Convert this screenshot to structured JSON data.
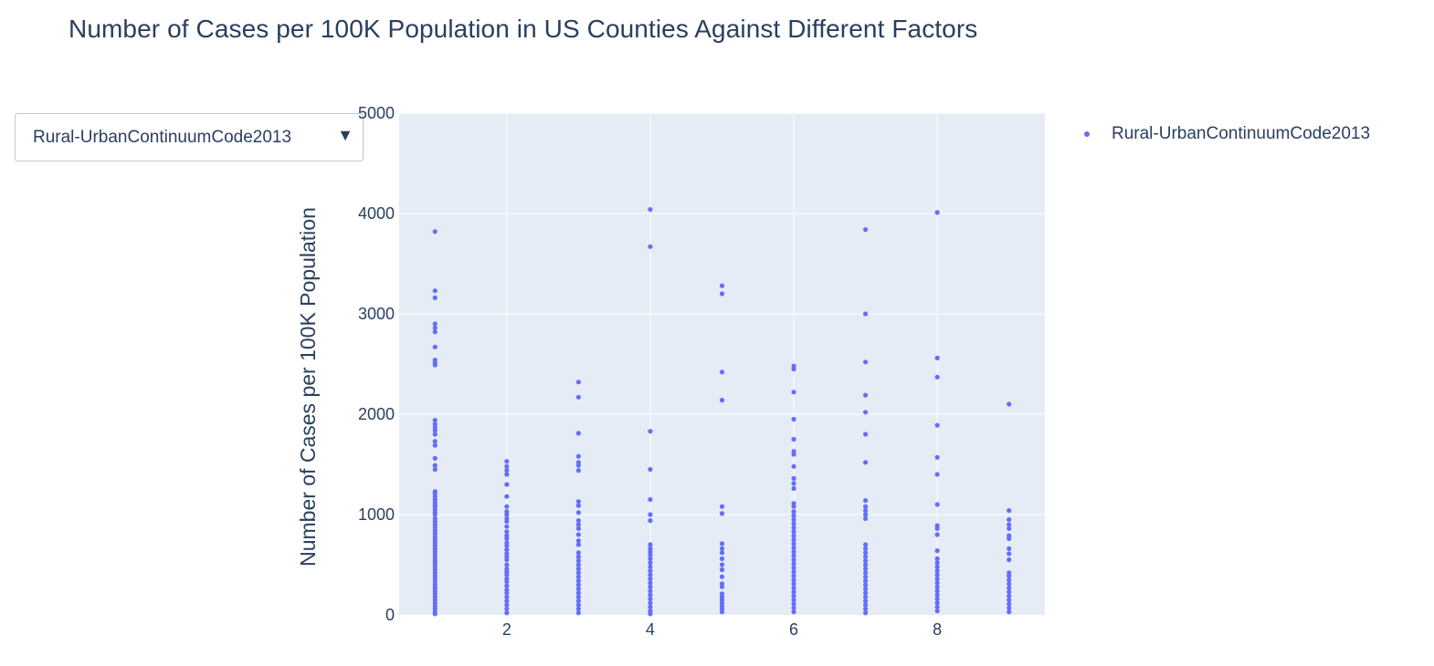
{
  "colors": {
    "plot_bg": "#e5ecf6",
    "grid": "#ffffff",
    "marker": "#636efa",
    "text": "#2a3f5f"
  },
  "dropdown": {
    "selected": "Rural-UrbanContinuumCode2013",
    "arrow_icon": "triangle-down-icon"
  },
  "chart_data": {
    "type": "scatter",
    "title": "Number of Cases per 100K Population in US Counties Against Different Factors",
    "xlabel": "",
    "ylabel": "Number of Cases per 100K Population",
    "xlim": [
      0.5,
      9.5
    ],
    "ylim": [
      0,
      5000
    ],
    "x_ticks": [
      2,
      4,
      6,
      8
    ],
    "y_ticks": [
      0,
      1000,
      2000,
      3000,
      4000,
      5000
    ],
    "grid": true,
    "legend_position": "top-right",
    "series": [
      {
        "name": "Rural-UrbanContinuumCode2013",
        "points": [
          [
            1,
            3820
          ],
          [
            1,
            3230
          ],
          [
            1,
            3160
          ],
          [
            1,
            2900
          ],
          [
            1,
            2860
          ],
          [
            1,
            2820
          ],
          [
            1,
            2670
          ],
          [
            1,
            2540
          ],
          [
            1,
            2510
          ],
          [
            1,
            2490
          ],
          [
            1,
            1940
          ],
          [
            1,
            1900
          ],
          [
            1,
            1870
          ],
          [
            1,
            1840
          ],
          [
            1,
            1800
          ],
          [
            1,
            1730
          ],
          [
            1,
            1690
          ],
          [
            1,
            1560
          ],
          [
            1,
            1490
          ],
          [
            1,
            1450
          ],
          [
            1,
            1230
          ],
          [
            1,
            1210
          ],
          [
            1,
            1180
          ],
          [
            1,
            1150
          ],
          [
            1,
            1120
          ],
          [
            1,
            1100
          ],
          [
            1,
            1080
          ],
          [
            1,
            1050
          ],
          [
            1,
            1020
          ],
          [
            1,
            1000
          ],
          [
            1,
            960
          ],
          [
            1,
            930
          ],
          [
            1,
            900
          ],
          [
            1,
            870
          ],
          [
            1,
            840
          ],
          [
            1,
            810
          ],
          [
            1,
            780
          ],
          [
            1,
            750
          ],
          [
            1,
            720
          ],
          [
            1,
            690
          ],
          [
            1,
            660
          ],
          [
            1,
            630
          ],
          [
            1,
            600
          ],
          [
            1,
            570
          ],
          [
            1,
            540
          ],
          [
            1,
            510
          ],
          [
            1,
            480
          ],
          [
            1,
            450
          ],
          [
            1,
            420
          ],
          [
            1,
            390
          ],
          [
            1,
            360
          ],
          [
            1,
            330
          ],
          [
            1,
            300
          ],
          [
            1,
            270
          ],
          [
            1,
            240
          ],
          [
            1,
            210
          ],
          [
            1,
            180
          ],
          [
            1,
            150
          ],
          [
            1,
            120
          ],
          [
            1,
            90
          ],
          [
            1,
            60
          ],
          [
            1,
            30
          ],
          [
            1,
            10
          ],
          [
            2,
            1530
          ],
          [
            2,
            1480
          ],
          [
            2,
            1440
          ],
          [
            2,
            1400
          ],
          [
            2,
            1300
          ],
          [
            2,
            1180
          ],
          [
            2,
            1080
          ],
          [
            2,
            1030
          ],
          [
            2,
            1000
          ],
          [
            2,
            960
          ],
          [
            2,
            930
          ],
          [
            2,
            880
          ],
          [
            2,
            830
          ],
          [
            2,
            790
          ],
          [
            2,
            760
          ],
          [
            2,
            720
          ],
          [
            2,
            690
          ],
          [
            2,
            650
          ],
          [
            2,
            610
          ],
          [
            2,
            580
          ],
          [
            2,
            550
          ],
          [
            2,
            500
          ],
          [
            2,
            460
          ],
          [
            2,
            430
          ],
          [
            2,
            400
          ],
          [
            2,
            360
          ],
          [
            2,
            330
          ],
          [
            2,
            290
          ],
          [
            2,
            250
          ],
          [
            2,
            220
          ],
          [
            2,
            180
          ],
          [
            2,
            140
          ],
          [
            2,
            100
          ],
          [
            2,
            60
          ],
          [
            2,
            20
          ],
          [
            3,
            2320
          ],
          [
            3,
            2170
          ],
          [
            3,
            1810
          ],
          [
            3,
            1580
          ],
          [
            3,
            1520
          ],
          [
            3,
            1490
          ],
          [
            3,
            1440
          ],
          [
            3,
            1130
          ],
          [
            3,
            1090
          ],
          [
            3,
            1020
          ],
          [
            3,
            940
          ],
          [
            3,
            900
          ],
          [
            3,
            860
          ],
          [
            3,
            800
          ],
          [
            3,
            740
          ],
          [
            3,
            700
          ],
          [
            3,
            620
          ],
          [
            3,
            580
          ],
          [
            3,
            540
          ],
          [
            3,
            500
          ],
          [
            3,
            460
          ],
          [
            3,
            420
          ],
          [
            3,
            380
          ],
          [
            3,
            340
          ],
          [
            3,
            300
          ],
          [
            3,
            260
          ],
          [
            3,
            220
          ],
          [
            3,
            180
          ],
          [
            3,
            140
          ],
          [
            3,
            100
          ],
          [
            3,
            60
          ],
          [
            3,
            20
          ],
          [
            4,
            4040
          ],
          [
            4,
            3670
          ],
          [
            4,
            1830
          ],
          [
            4,
            1450
          ],
          [
            4,
            1150
          ],
          [
            4,
            1000
          ],
          [
            4,
            940
          ],
          [
            4,
            700
          ],
          [
            4,
            660
          ],
          [
            4,
            630
          ],
          [
            4,
            600
          ],
          [
            4,
            560
          ],
          [
            4,
            520
          ],
          [
            4,
            480
          ],
          [
            4,
            440
          ],
          [
            4,
            400
          ],
          [
            4,
            360
          ],
          [
            4,
            320
          ],
          [
            4,
            280
          ],
          [
            4,
            240
          ],
          [
            4,
            200
          ],
          [
            4,
            160
          ],
          [
            4,
            120
          ],
          [
            4,
            80
          ],
          [
            4,
            40
          ],
          [
            4,
            10
          ],
          [
            5,
            3280
          ],
          [
            5,
            3200
          ],
          [
            5,
            2420
          ],
          [
            5,
            2140
          ],
          [
            5,
            1080
          ],
          [
            5,
            1010
          ],
          [
            5,
            710
          ],
          [
            5,
            660
          ],
          [
            5,
            620
          ],
          [
            5,
            560
          ],
          [
            5,
            500
          ],
          [
            5,
            450
          ],
          [
            5,
            380
          ],
          [
            5,
            310
          ],
          [
            5,
            280
          ],
          [
            5,
            210
          ],
          [
            5,
            180
          ],
          [
            5,
            150
          ],
          [
            5,
            120
          ],
          [
            5,
            90
          ],
          [
            5,
            60
          ],
          [
            5,
            30
          ],
          [
            6,
            2480
          ],
          [
            6,
            2450
          ],
          [
            6,
            2220
          ],
          [
            6,
            1950
          ],
          [
            6,
            1750
          ],
          [
            6,
            1630
          ],
          [
            6,
            1600
          ],
          [
            6,
            1480
          ],
          [
            6,
            1360
          ],
          [
            6,
            1310
          ],
          [
            6,
            1260
          ],
          [
            6,
            1110
          ],
          [
            6,
            1080
          ],
          [
            6,
            1030
          ],
          [
            6,
            990
          ],
          [
            6,
            950
          ],
          [
            6,
            910
          ],
          [
            6,
            870
          ],
          [
            6,
            830
          ],
          [
            6,
            790
          ],
          [
            6,
            750
          ],
          [
            6,
            710
          ],
          [
            6,
            670
          ],
          [
            6,
            630
          ],
          [
            6,
            590
          ],
          [
            6,
            550
          ],
          [
            6,
            510
          ],
          [
            6,
            470
          ],
          [
            6,
            430
          ],
          [
            6,
            390
          ],
          [
            6,
            350
          ],
          [
            6,
            310
          ],
          [
            6,
            270
          ],
          [
            6,
            230
          ],
          [
            6,
            190
          ],
          [
            6,
            150
          ],
          [
            6,
            110
          ],
          [
            6,
            70
          ],
          [
            6,
            30
          ],
          [
            7,
            3840
          ],
          [
            7,
            3000
          ],
          [
            7,
            2520
          ],
          [
            7,
            2190
          ],
          [
            7,
            2020
          ],
          [
            7,
            1800
          ],
          [
            7,
            1520
          ],
          [
            7,
            1140
          ],
          [
            7,
            1080
          ],
          [
            7,
            1040
          ],
          [
            7,
            1000
          ],
          [
            7,
            960
          ],
          [
            7,
            700
          ],
          [
            7,
            660
          ],
          [
            7,
            620
          ],
          [
            7,
            580
          ],
          [
            7,
            540
          ],
          [
            7,
            500
          ],
          [
            7,
            460
          ],
          [
            7,
            420
          ],
          [
            7,
            380
          ],
          [
            7,
            340
          ],
          [
            7,
            300
          ],
          [
            7,
            260
          ],
          [
            7,
            220
          ],
          [
            7,
            180
          ],
          [
            7,
            140
          ],
          [
            7,
            100
          ],
          [
            7,
            60
          ],
          [
            7,
            20
          ],
          [
            8,
            4010
          ],
          [
            8,
            2560
          ],
          [
            8,
            2370
          ],
          [
            8,
            1890
          ],
          [
            8,
            1570
          ],
          [
            8,
            1400
          ],
          [
            8,
            1100
          ],
          [
            8,
            890
          ],
          [
            8,
            860
          ],
          [
            8,
            800
          ],
          [
            8,
            640
          ],
          [
            8,
            560
          ],
          [
            8,
            520
          ],
          [
            8,
            480
          ],
          [
            8,
            440
          ],
          [
            8,
            400
          ],
          [
            8,
            360
          ],
          [
            8,
            320
          ],
          [
            8,
            280
          ],
          [
            8,
            240
          ],
          [
            8,
            200
          ],
          [
            8,
            160
          ],
          [
            8,
            120
          ],
          [
            8,
            80
          ],
          [
            8,
            40
          ],
          [
            9,
            2100
          ],
          [
            9,
            1040
          ],
          [
            9,
            950
          ],
          [
            9,
            900
          ],
          [
            9,
            860
          ],
          [
            9,
            790
          ],
          [
            9,
            760
          ],
          [
            9,
            660
          ],
          [
            9,
            610
          ],
          [
            9,
            550
          ],
          [
            9,
            420
          ],
          [
            9,
            390
          ],
          [
            9,
            350
          ],
          [
            9,
            310
          ],
          [
            9,
            270
          ],
          [
            9,
            230
          ],
          [
            9,
            190
          ],
          [
            9,
            150
          ],
          [
            9,
            110
          ],
          [
            9,
            70
          ],
          [
            9,
            30
          ]
        ]
      }
    ]
  }
}
